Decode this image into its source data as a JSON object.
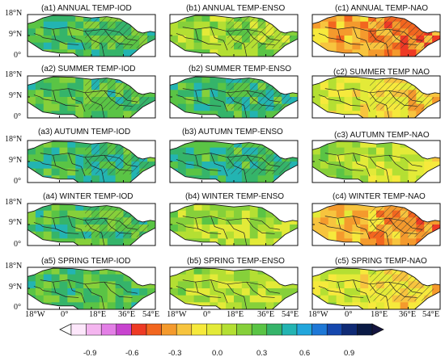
{
  "figure": {
    "panels": [
      {
        "id": "a1",
        "title": "(a1) ANNUAL TEMP-IOD",
        "season": "ANNUAL",
        "index": "IOD"
      },
      {
        "id": "b1",
        "title": "(b1) ANNUAL TEMP-ENSO",
        "season": "ANNUAL",
        "index": "ENSO"
      },
      {
        "id": "c1",
        "title": "(c1) ANNUAL TEMP-NAO",
        "season": "ANNUAL",
        "index": "NAO"
      },
      {
        "id": "a2",
        "title": "(a2) SUMMER TEMP-IOD",
        "season": "SUMMER",
        "index": "IOD"
      },
      {
        "id": "b2",
        "title": "(b2) SUMMER TEMP-ENSO",
        "season": "SUMMER",
        "index": "ENSO"
      },
      {
        "id": "c2",
        "title": "(c2) SUMMER TEMP NAO",
        "season": "SUMMER",
        "index": "NAO"
      },
      {
        "id": "a3",
        "title": "(a3) AUTUMN TEMP-IOD",
        "season": "AUTUMN",
        "index": "IOD"
      },
      {
        "id": "b3",
        "title": "(b3) AUTUMN TEMP-ENSO",
        "season": "AUTUMN",
        "index": "ENSO"
      },
      {
        "id": "c3",
        "title": "(c3) AUTUMN TEMP-NAO",
        "season": "AUTUMN",
        "index": "NAO"
      },
      {
        "id": "a4",
        "title": "(a4) WINTER TEMP-IOD",
        "season": "WINTER",
        "index": "IOD"
      },
      {
        "id": "b4",
        "title": "(b4) WINTER TEMP-ENSO",
        "season": "WINTER",
        "index": "ENSO"
      },
      {
        "id": "c4",
        "title": "(c4) WINTER TEMP-NAO",
        "season": "WINTER",
        "index": "NAO"
      },
      {
        "id": "a5",
        "title": "(a5) SPRING TEMP-IOD",
        "season": "SPRING",
        "index": "IOD"
      },
      {
        "id": "b5",
        "title": "(b5) SPRING TEMP-ENSO",
        "season": "SPRING",
        "index": "ENSO"
      },
      {
        "id": "c5",
        "title": "(c5) SPRING TEMP-NAO",
        "season": "SPRING",
        "index": "NAO"
      }
    ],
    "lat_labels": [
      "18°N",
      "9°N",
      "0°"
    ],
    "lon_labels": [
      "18°W",
      "0°",
      "18°E",
      "36°E",
      "54°E"
    ],
    "colorbar": {
      "ticks": [
        "-0.9",
        "-0.6",
        "-0.3",
        "0.0",
        "0.3",
        "0.6",
        "0.9"
      ],
      "colors": [
        "#fde7fb",
        "#f4b5ef",
        "#e37fe6",
        "#c843cf",
        "#ee3a25",
        "#f2661f",
        "#f49a2d",
        "#f7c43e",
        "#f6e93c",
        "#e3ea38",
        "#b4df33",
        "#86d03a",
        "#5ac445",
        "#35b46a",
        "#23b4b2",
        "#22a6dc",
        "#1e78d6",
        "#1547ad",
        "#0f2a75",
        "#0a1a45"
      ],
      "extend": "both"
    }
  },
  "chart_data": {
    "type": "heatmap",
    "variable": "TEMP",
    "rows": [
      "ANNUAL",
      "SUMMER",
      "AUTUMN",
      "WINTER",
      "SPRING"
    ],
    "columns": [
      "IOD",
      "ENSO",
      "NAO"
    ],
    "xlim": [
      -18,
      54
    ],
    "ylim": [
      0,
      18
    ],
    "x_ticks": [
      "18°W",
      "0°",
      "18°E",
      "36°E",
      "54°E"
    ],
    "y_ticks": [
      "18°N",
      "9°N",
      "0°"
    ],
    "colorbar_range": [
      -0.9,
      0.9
    ],
    "colorbar_ticks": [
      -0.9,
      -0.6,
      -0.3,
      0.0,
      0.3,
      0.6,
      0.9
    ],
    "approx_dominant_value": [
      {
        "panel": "a1",
        "value": 0.25,
        "hatched": true
      },
      {
        "panel": "b1",
        "value": 0.1,
        "hatched": true
      },
      {
        "panel": "c1",
        "value": -0.3,
        "hatched": true
      },
      {
        "panel": "a2",
        "value": 0.25,
        "hatched": true
      },
      {
        "panel": "b2",
        "value": 0.3,
        "hatched": true
      },
      {
        "panel": "c2",
        "value": -0.1,
        "hatched": true
      },
      {
        "panel": "a3",
        "value": 0.3,
        "hatched": true
      },
      {
        "panel": "b3",
        "value": 0.3,
        "hatched": true
      },
      {
        "panel": "c3",
        "value": 0.05,
        "hatched": false
      },
      {
        "panel": "a4",
        "value": 0.25,
        "hatched": true
      },
      {
        "panel": "b4",
        "value": 0.05,
        "hatched": false
      },
      {
        "panel": "c4",
        "value": -0.25,
        "hatched": true
      },
      {
        "panel": "a5",
        "value": 0.25,
        "hatched": false
      },
      {
        "panel": "b5",
        "value": 0.05,
        "hatched": false
      },
      {
        "panel": "c5",
        "value": -0.1,
        "hatched": true
      }
    ]
  }
}
